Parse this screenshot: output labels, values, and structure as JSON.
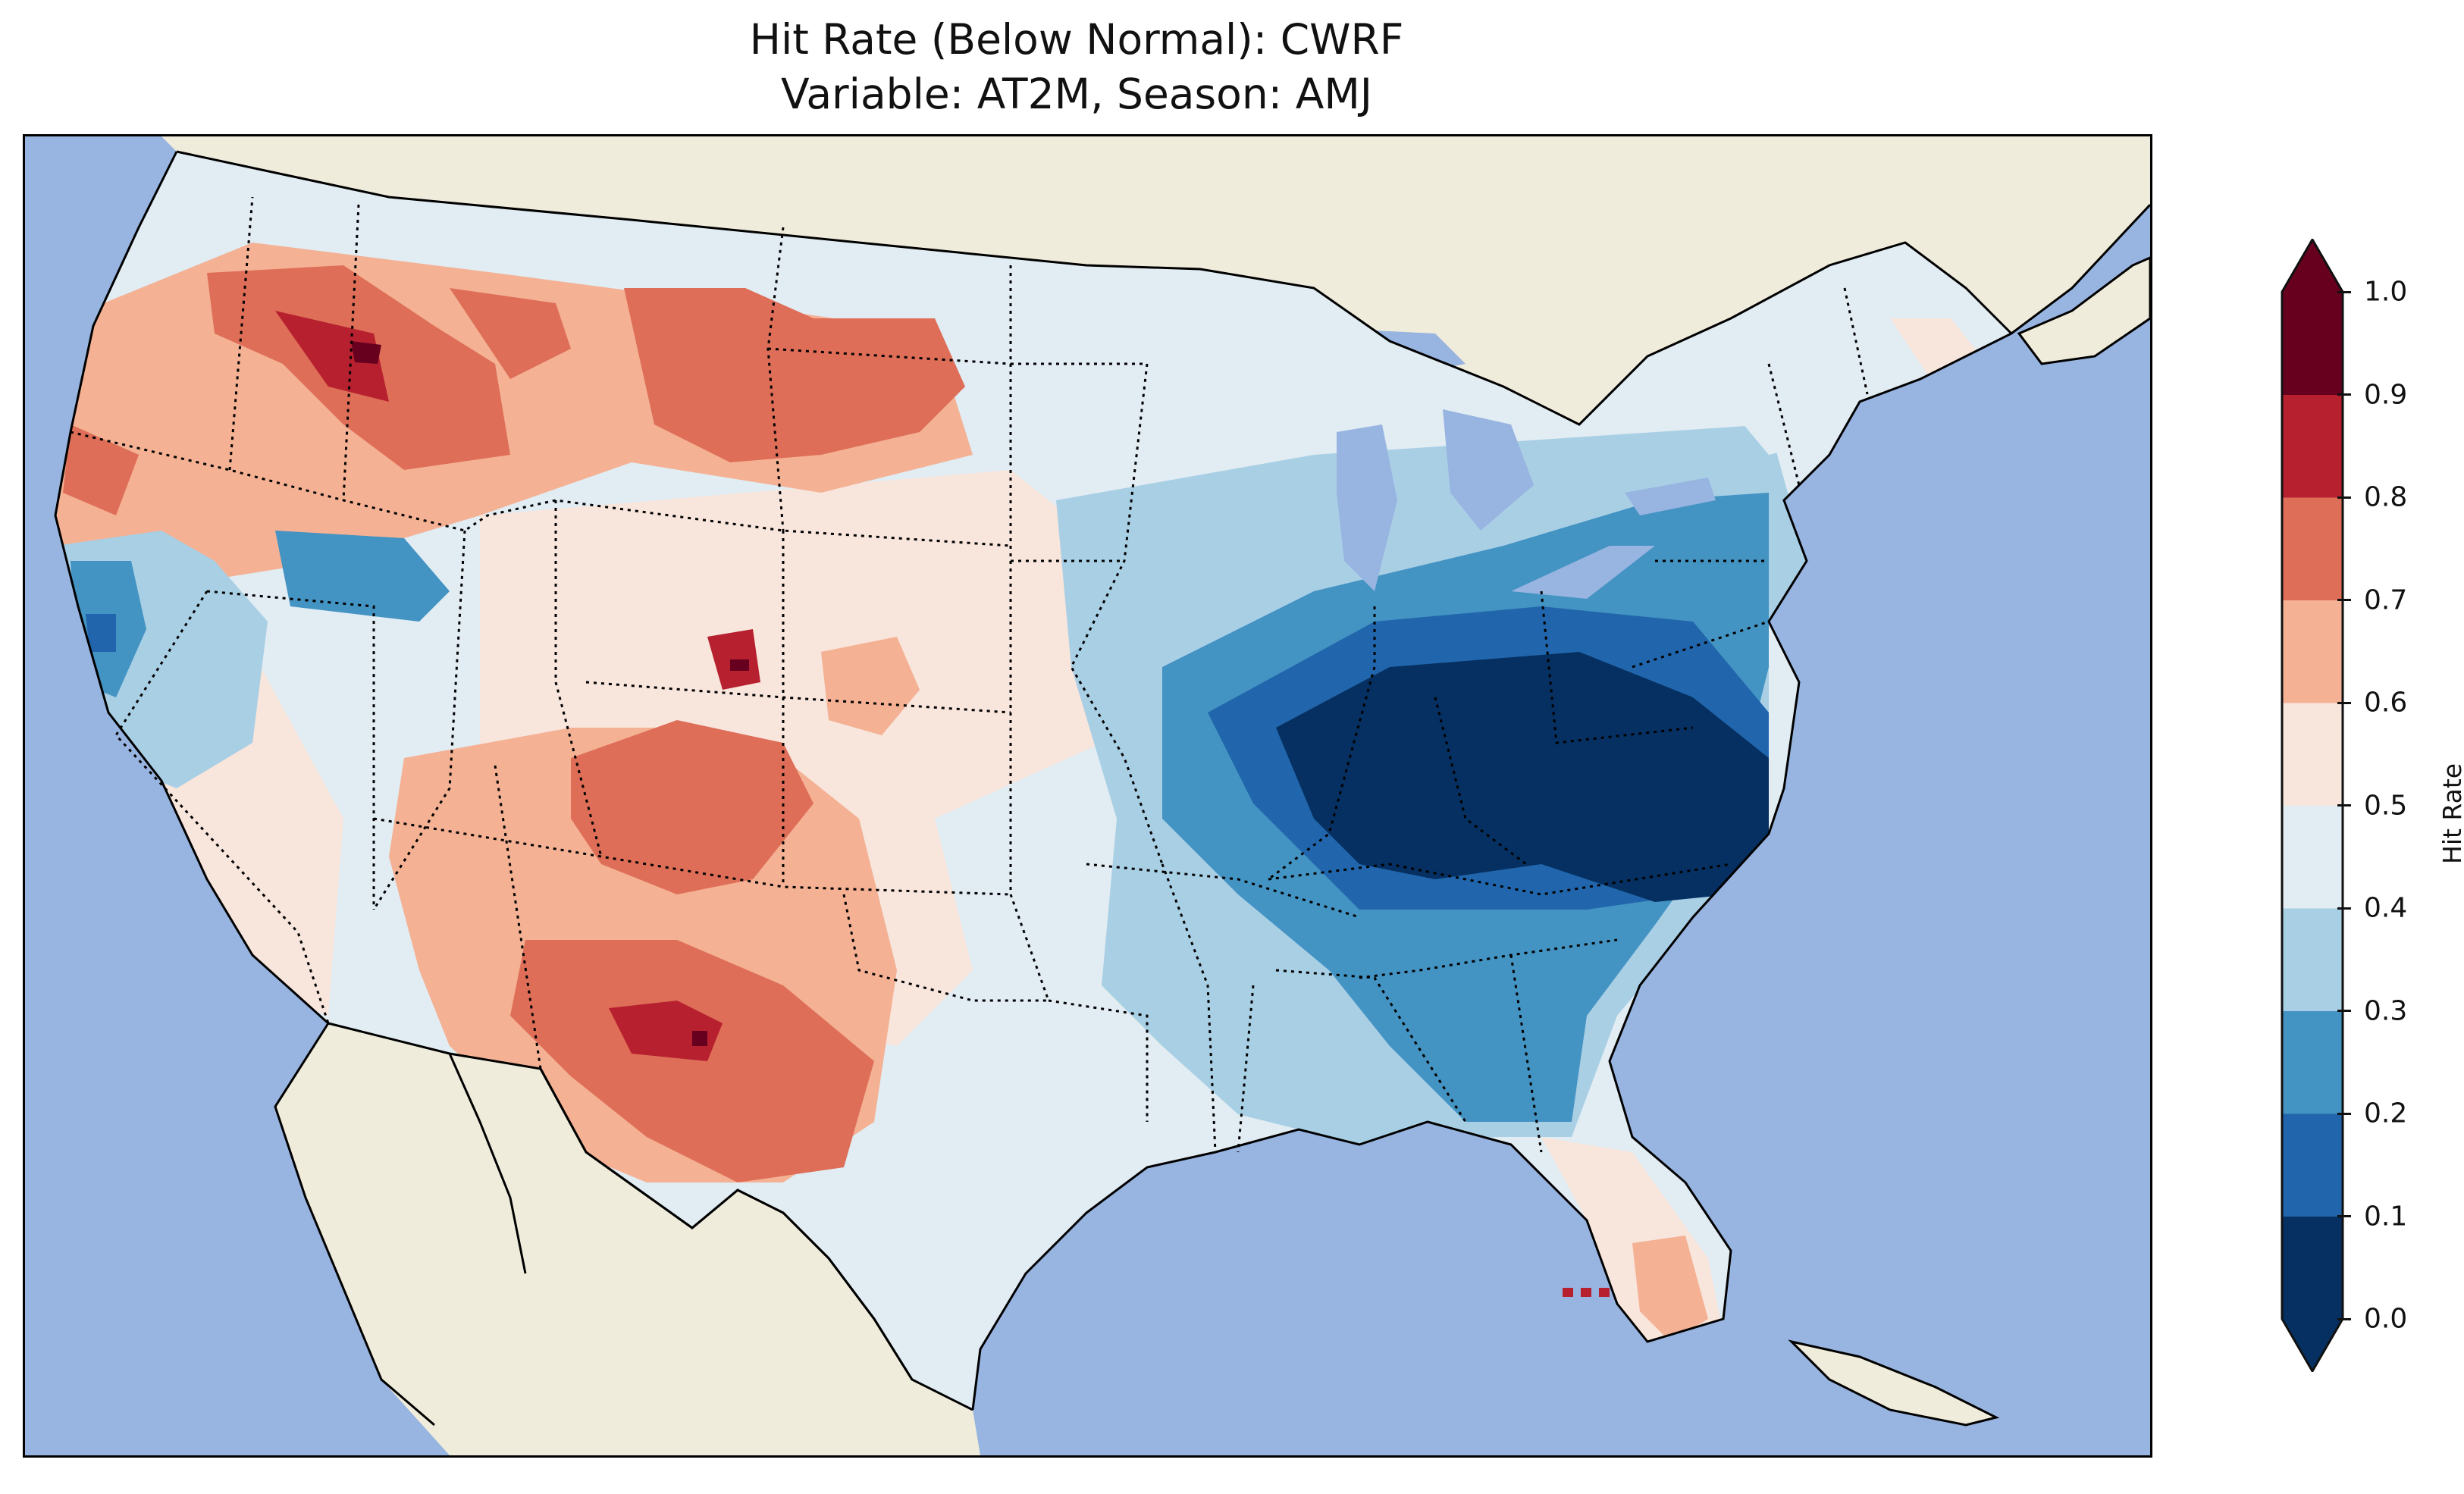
{
  "title": {
    "line1": "Hit Rate (Below Normal): CWRF",
    "line2": "Variable: AT2M, Season: AMJ"
  },
  "colorbar": {
    "label": "Hit Rate",
    "ticks": [
      "0.0",
      "0.1",
      "0.2",
      "0.3",
      "0.4",
      "0.5",
      "0.6",
      "0.7",
      "0.8",
      "0.9",
      "1.0"
    ],
    "bins": [
      {
        "range": "0.0-0.1",
        "color": "#053061"
      },
      {
        "range": "0.1-0.2",
        "color": "#2166ac"
      },
      {
        "range": "0.2-0.3",
        "color": "#4393c3"
      },
      {
        "range": "0.3-0.4",
        "color": "#a9cfe5"
      },
      {
        "range": "0.4-0.5",
        "color": "#e1ecf3"
      },
      {
        "range": "0.5-0.6",
        "color": "#f8e5dc"
      },
      {
        "range": "0.6-0.7",
        "color": "#f4b193"
      },
      {
        "range": "0.7-0.8",
        "color": "#de6e58"
      },
      {
        "range": "0.8-0.9",
        "color": "#b7202f"
      },
      {
        "range": "0.9-1.0",
        "color": "#67001f"
      }
    ],
    "extend": "both"
  },
  "map": {
    "ocean_color": "#98b4e0",
    "land_color": "#efecdb"
  }
}
